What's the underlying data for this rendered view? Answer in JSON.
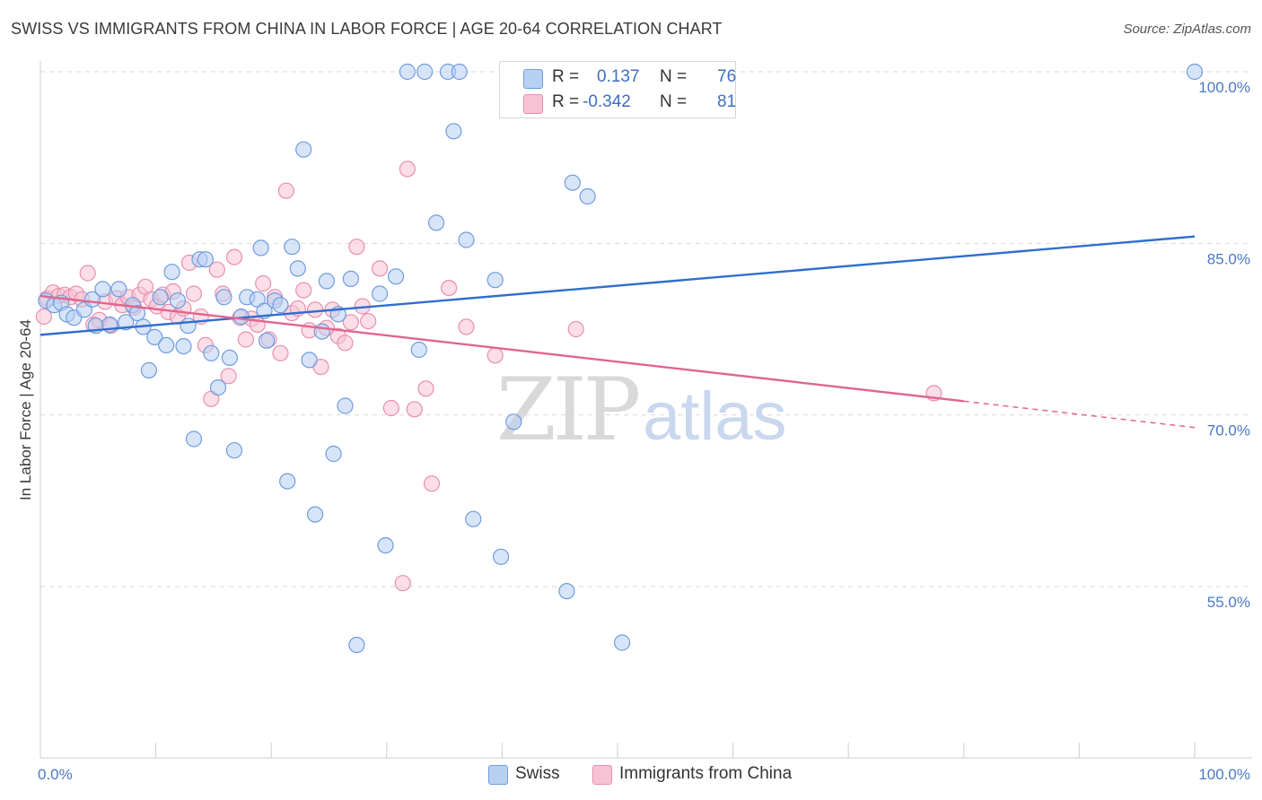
{
  "title": "SWISS VS IMMIGRANTS FROM CHINA IN LABOR FORCE | AGE 20-64 CORRELATION CHART",
  "source": "Source: ZipAtlas.com",
  "watermark": {
    "zip": "ZIP",
    "atlas": "atlas"
  },
  "colors": {
    "swiss_fill": "#b8d0f2",
    "swiss_stroke": "#6f9ce0",
    "swiss_line": "#2f6fcc",
    "china_fill": "#f7c3d4",
    "china_stroke": "#ea8fae",
    "china_line": "#e0668f",
    "grid": "#d9d9d9",
    "axis_text": "#4a78c2"
  },
  "legend": {
    "rows": [
      {
        "r_label": "R =",
        "r_value": "0.137",
        "n_label": "N =",
        "n_value": "76"
      },
      {
        "r_label": "R =",
        "r_value": "-0.342",
        "n_label": "N =",
        "n_value": "81"
      }
    ]
  },
  "bottom_legend": {
    "swiss": "Swiss",
    "china": "Immigrants from China"
  },
  "chart_data": {
    "type": "scatter",
    "ylabel": "In Labor Force | Age 20-64",
    "xlim": [
      0,
      100
    ],
    "ylim": [
      40,
      100
    ],
    "x_tick_labels": [
      {
        "x": 0,
        "label": "0.0%"
      },
      {
        "x": 100,
        "label": "100.0%"
      }
    ],
    "y_tick_labels": [
      {
        "y": 100,
        "label": "100.0%"
      },
      {
        "y": 85,
        "label": "85.0%"
      },
      {
        "y": 70,
        "label": "70.0%"
      },
      {
        "y": 55,
        "label": "55.0%"
      }
    ],
    "grid": "horizontal dashed",
    "series": [
      {
        "name": "Swiss",
        "r": 0.137,
        "n": 76,
        "trend": {
          "x": [
            0,
            100
          ],
          "y": [
            77.0,
            85.6
          ]
        },
        "points": [
          [
            0.5,
            80.0
          ],
          [
            1.2,
            79.6
          ],
          [
            1.8,
            79.8
          ],
          [
            2.3,
            78.8
          ],
          [
            2.9,
            78.5
          ],
          [
            3.8,
            79.2
          ],
          [
            4.5,
            80.1
          ],
          [
            4.8,
            77.8
          ],
          [
            5.4,
            81.0
          ],
          [
            6.0,
            77.9
          ],
          [
            6.8,
            81.0
          ],
          [
            7.4,
            78.1
          ],
          [
            8.0,
            79.6
          ],
          [
            8.4,
            78.9
          ],
          [
            8.9,
            77.7
          ],
          [
            9.4,
            73.9
          ],
          [
            9.9,
            76.8
          ],
          [
            10.4,
            80.3
          ],
          [
            10.9,
            76.1
          ],
          [
            11.4,
            82.5
          ],
          [
            11.9,
            80.0
          ],
          [
            12.4,
            76.0
          ],
          [
            12.8,
            77.8
          ],
          [
            13.3,
            67.9
          ],
          [
            13.8,
            83.6
          ],
          [
            14.3,
            83.6
          ],
          [
            14.8,
            75.4
          ],
          [
            15.4,
            72.4
          ],
          [
            15.9,
            80.3
          ],
          [
            16.4,
            75.0
          ],
          [
            16.8,
            66.9
          ],
          [
            17.4,
            78.6
          ],
          [
            17.9,
            80.3
          ],
          [
            18.8,
            80.1
          ],
          [
            19.1,
            84.6
          ],
          [
            19.4,
            79.1
          ],
          [
            19.6,
            76.5
          ],
          [
            20.3,
            80.0
          ],
          [
            20.8,
            79.6
          ],
          [
            21.4,
            64.2
          ],
          [
            21.8,
            84.7
          ],
          [
            22.3,
            82.8
          ],
          [
            22.8,
            93.2
          ],
          [
            23.3,
            74.8
          ],
          [
            23.8,
            61.3
          ],
          [
            24.4,
            77.3
          ],
          [
            24.8,
            81.7
          ],
          [
            25.4,
            66.6
          ],
          [
            25.8,
            78.8
          ],
          [
            26.4,
            70.8
          ],
          [
            26.9,
            81.9
          ],
          [
            27.4,
            49.9
          ],
          [
            29.4,
            80.6
          ],
          [
            29.9,
            58.6
          ],
          [
            30.8,
            82.1
          ],
          [
            31.8,
            100.0
          ],
          [
            32.8,
            75.7
          ],
          [
            33.3,
            100.0
          ],
          [
            34.3,
            86.8
          ],
          [
            35.3,
            100.0
          ],
          [
            35.8,
            94.8
          ],
          [
            36.3,
            100.0
          ],
          [
            36.9,
            85.3
          ],
          [
            37.5,
            60.9
          ],
          [
            39.4,
            81.8
          ],
          [
            39.9,
            57.6
          ],
          [
            41.0,
            69.4
          ],
          [
            45.6,
            54.6
          ],
          [
            46.1,
            90.3
          ],
          [
            47.4,
            89.1
          ],
          [
            50.4,
            50.1
          ],
          [
            100.0,
            100.0
          ]
        ]
      },
      {
        "name": "Immigrants from China",
        "r": -0.342,
        "n": 81,
        "trend": {
          "x": [
            0,
            80
          ],
          "y": [
            80.4,
            71.2
          ]
        },
        "trend_dashed": {
          "x": [
            80,
            100
          ],
          "y": [
            71.2,
            68.9
          ]
        },
        "points": [
          [
            0.3,
            78.6
          ],
          [
            0.6,
            80.2
          ],
          [
            1.1,
            80.7
          ],
          [
            1.6,
            80.4
          ],
          [
            2.1,
            80.5
          ],
          [
            2.6,
            80.3
          ],
          [
            3.1,
            80.6
          ],
          [
            3.6,
            80.1
          ],
          [
            4.1,
            82.4
          ],
          [
            4.6,
            77.9
          ],
          [
            5.1,
            78.3
          ],
          [
            5.6,
            79.9
          ],
          [
            6.1,
            77.8
          ],
          [
            6.6,
            80.2
          ],
          [
            7.1,
            79.6
          ],
          [
            7.6,
            80.3
          ],
          [
            8.1,
            79.4
          ],
          [
            8.6,
            80.5
          ],
          [
            9.1,
            81.2
          ],
          [
            9.6,
            80.1
          ],
          [
            10.1,
            79.5
          ],
          [
            10.6,
            80.5
          ],
          [
            11.1,
            79.0
          ],
          [
            11.5,
            80.8
          ],
          [
            11.9,
            78.6
          ],
          [
            12.4,
            79.3
          ],
          [
            12.9,
            83.3
          ],
          [
            13.3,
            80.6
          ],
          [
            13.9,
            78.6
          ],
          [
            14.3,
            76.1
          ],
          [
            14.8,
            71.4
          ],
          [
            15.3,
            82.7
          ],
          [
            15.8,
            80.6
          ],
          [
            16.3,
            73.4
          ],
          [
            16.8,
            83.8
          ],
          [
            17.3,
            78.5
          ],
          [
            17.8,
            76.6
          ],
          [
            18.3,
            78.4
          ],
          [
            18.8,
            77.9
          ],
          [
            19.3,
            81.5
          ],
          [
            19.8,
            76.6
          ],
          [
            20.3,
            80.3
          ],
          [
            20.8,
            75.4
          ],
          [
            21.3,
            89.6
          ],
          [
            21.8,
            78.9
          ],
          [
            22.3,
            79.3
          ],
          [
            22.8,
            80.9
          ],
          [
            23.3,
            77.4
          ],
          [
            23.8,
            79.2
          ],
          [
            24.3,
            74.2
          ],
          [
            24.8,
            77.6
          ],
          [
            25.3,
            79.2
          ],
          [
            25.8,
            76.9
          ],
          [
            26.4,
            76.3
          ],
          [
            26.9,
            78.1
          ],
          [
            27.4,
            84.7
          ],
          [
            27.9,
            79.5
          ],
          [
            28.4,
            78.2
          ],
          [
            29.4,
            82.8
          ],
          [
            30.4,
            70.6
          ],
          [
            31.4,
            55.3
          ],
          [
            31.8,
            91.5
          ],
          [
            32.4,
            70.5
          ],
          [
            33.4,
            72.3
          ],
          [
            33.9,
            64.0
          ],
          [
            35.4,
            81.1
          ],
          [
            36.9,
            77.7
          ],
          [
            39.4,
            75.2
          ],
          [
            46.4,
            77.5
          ],
          [
            77.4,
            71.9
          ]
        ]
      }
    ]
  }
}
